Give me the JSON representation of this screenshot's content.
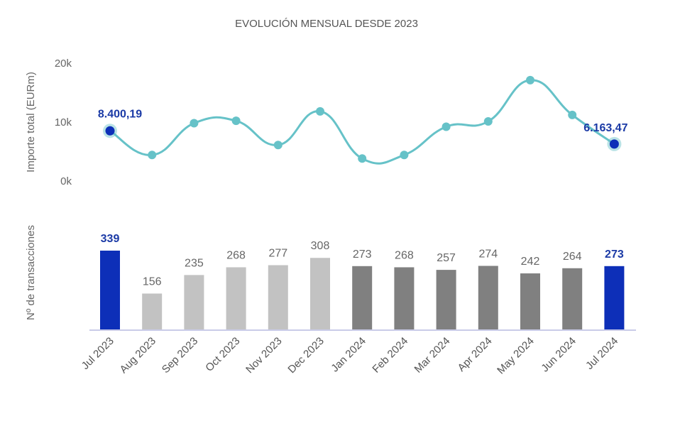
{
  "chart_data": {
    "title": "EVOLUCIÓN MENSUAL DESDE 2023",
    "categories": [
      "Jul 2023",
      "Aug 2023",
      "Sep 2023",
      "Oct 2023",
      "Nov 2023",
      "Dec 2023",
      "Jan 2024",
      "Feb 2024",
      "Mar 2024",
      "Apr 2024",
      "May 2024",
      "Jun 2024",
      "Jul 2024"
    ],
    "line": {
      "type": "line",
      "ylabel": "Importe total (EURm)",
      "ylim": [
        0,
        20000
      ],
      "yticks": [
        "0k",
        "10k",
        "20k"
      ],
      "values": [
        8400.19,
        4300,
        9700,
        10100,
        6000,
        11700,
        3700,
        4300,
        9100,
        10000,
        17000,
        11100,
        6163.47
      ],
      "start_label": "8.400,19",
      "end_label": "6.163,47",
      "color": "#66c2c8",
      "highlight_color": "#0d2fb8"
    },
    "bars": {
      "type": "bar",
      "ylabel": "Nº de transacciones",
      "ylim": [
        0,
        339
      ],
      "values": [
        339,
        156,
        235,
        268,
        277,
        308,
        273,
        268,
        257,
        274,
        242,
        264,
        273
      ],
      "colors": [
        "#0d2fb8",
        "#c2c2c2",
        "#c2c2c2",
        "#c2c2c2",
        "#c2c2c2",
        "#c2c2c2",
        "#808080",
        "#808080",
        "#808080",
        "#808080",
        "#808080",
        "#808080",
        "#0d2fb8"
      ],
      "highlight": [
        0,
        12
      ]
    }
  }
}
